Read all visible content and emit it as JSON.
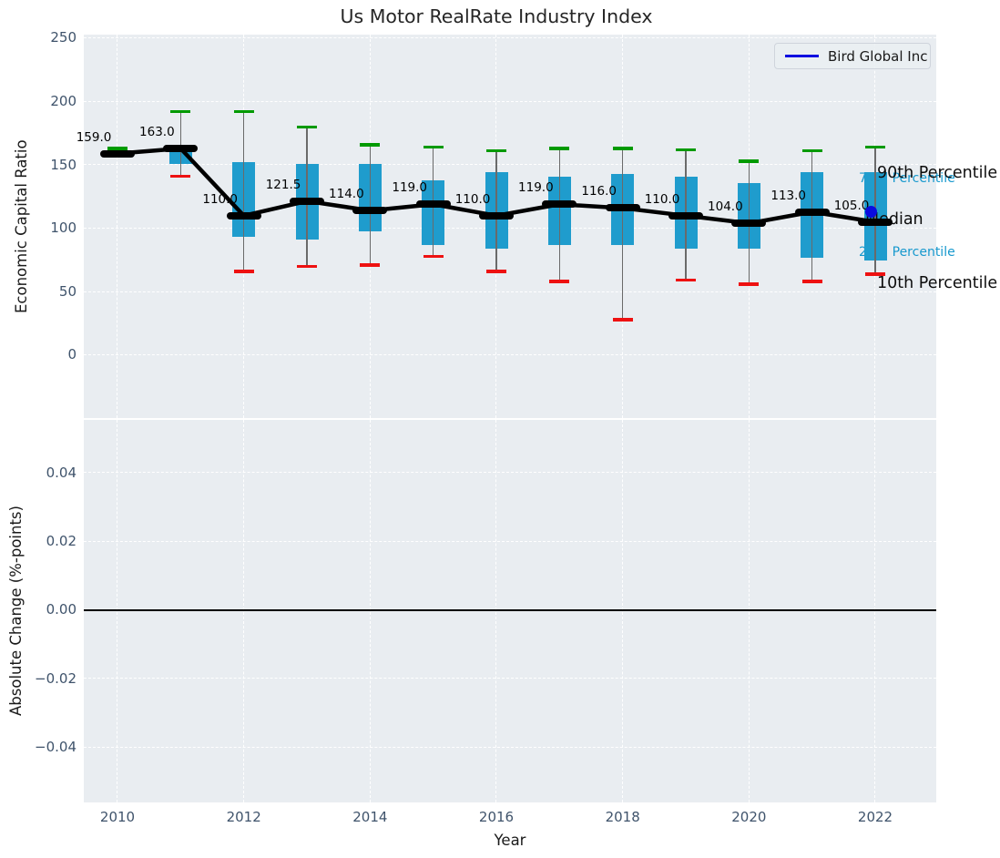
{
  "title": "Us Motor RealRate Industry Index",
  "legend": {
    "label": "Bird Global Inc"
  },
  "axes": {
    "top": {
      "ylabel": "Economic Capital Ratio",
      "yticks": [
        {
          "v": 0,
          "label": "0"
        },
        {
          "v": 50,
          "label": "50"
        },
        {
          "v": 100,
          "label": "100"
        },
        {
          "v": 150,
          "label": "150"
        },
        {
          "v": 200,
          "label": "200"
        },
        {
          "v": 250,
          "label": "250"
        }
      ],
      "ylim": [
        -49.6,
        252.8
      ],
      "grid": true
    },
    "bottom": {
      "ylabel": "Absolute Change (%-points)",
      "yticks": [
        {
          "v": 0.04,
          "label": "0.04"
        },
        {
          "v": 0.02,
          "label": "0.02"
        },
        {
          "v": 0,
          "label": "0.00"
        },
        {
          "v": -0.02,
          "label": "−0.02"
        },
        {
          "v": -0.04,
          "label": "−0.04"
        }
      ],
      "ylim": [
        -0.056,
        0.0554
      ],
      "zero_line": 0,
      "grid": true
    },
    "x": {
      "label": "Year",
      "ticks": [
        {
          "v": 2010,
          "label": "2010"
        },
        {
          "v": 2012,
          "label": "2012"
        },
        {
          "v": 2014,
          "label": "2014"
        },
        {
          "v": 2016,
          "label": "2016"
        },
        {
          "v": 2018,
          "label": "2018"
        },
        {
          "v": 2020,
          "label": "2020"
        },
        {
          "v": 2022,
          "label": "2022"
        }
      ],
      "xlim": [
        2009.466,
        2022.966
      ]
    }
  },
  "annotations": {
    "p90": "90th Percentile",
    "p75": "75th Percentile",
    "median": "Median",
    "p25": "25th Percentile",
    "p10": "10th Percentile"
  },
  "colors": {
    "box": "#1f9ccd",
    "p90_cap": "#009a00",
    "p10_cap": "#ee1111",
    "median": "#000000",
    "trend_line": "#000000",
    "company": "#0b0be0",
    "plot_bg": "#e9edf1",
    "grid": "#ffffff",
    "blue_label": "#1899ce"
  },
  "chart_data": {
    "type": "boxplot",
    "x": [
      2010,
      2011,
      2012,
      2013,
      2014,
      2015,
      2016,
      2017,
      2018,
      2019,
      2020,
      2021,
      2022
    ],
    "series": {
      "p90": [
        163,
        192,
        192,
        180,
        166,
        164,
        161,
        163,
        163,
        162,
        153,
        161,
        164
      ],
      "p75": [
        160,
        163,
        152,
        151,
        151,
        138,
        144,
        141,
        143,
        141,
        136,
        144,
        144
      ],
      "median": [
        159,
        163,
        110,
        121.5,
        114,
        119,
        110,
        119,
        116,
        110,
        104,
        113,
        105
      ],
      "p25": [
        158,
        151,
        93,
        91,
        98,
        87,
        84,
        87,
        87,
        84,
        84,
        77,
        75
      ],
      "p10": [
        157,
        141,
        66,
        70,
        71,
        78,
        66,
        58,
        28,
        59,
        56,
        58,
        64
      ]
    },
    "median_labels": [
      "159.0",
      "163.0",
      "110.0",
      "121.5",
      "114.0",
      "119.0",
      "110.0",
      "119.0",
      "116.0",
      "110.0",
      "104.0",
      "113.0",
      "105.0"
    ],
    "company_point": {
      "name": "Bird Global Inc",
      "x": 2022,
      "value": 113
    }
  }
}
